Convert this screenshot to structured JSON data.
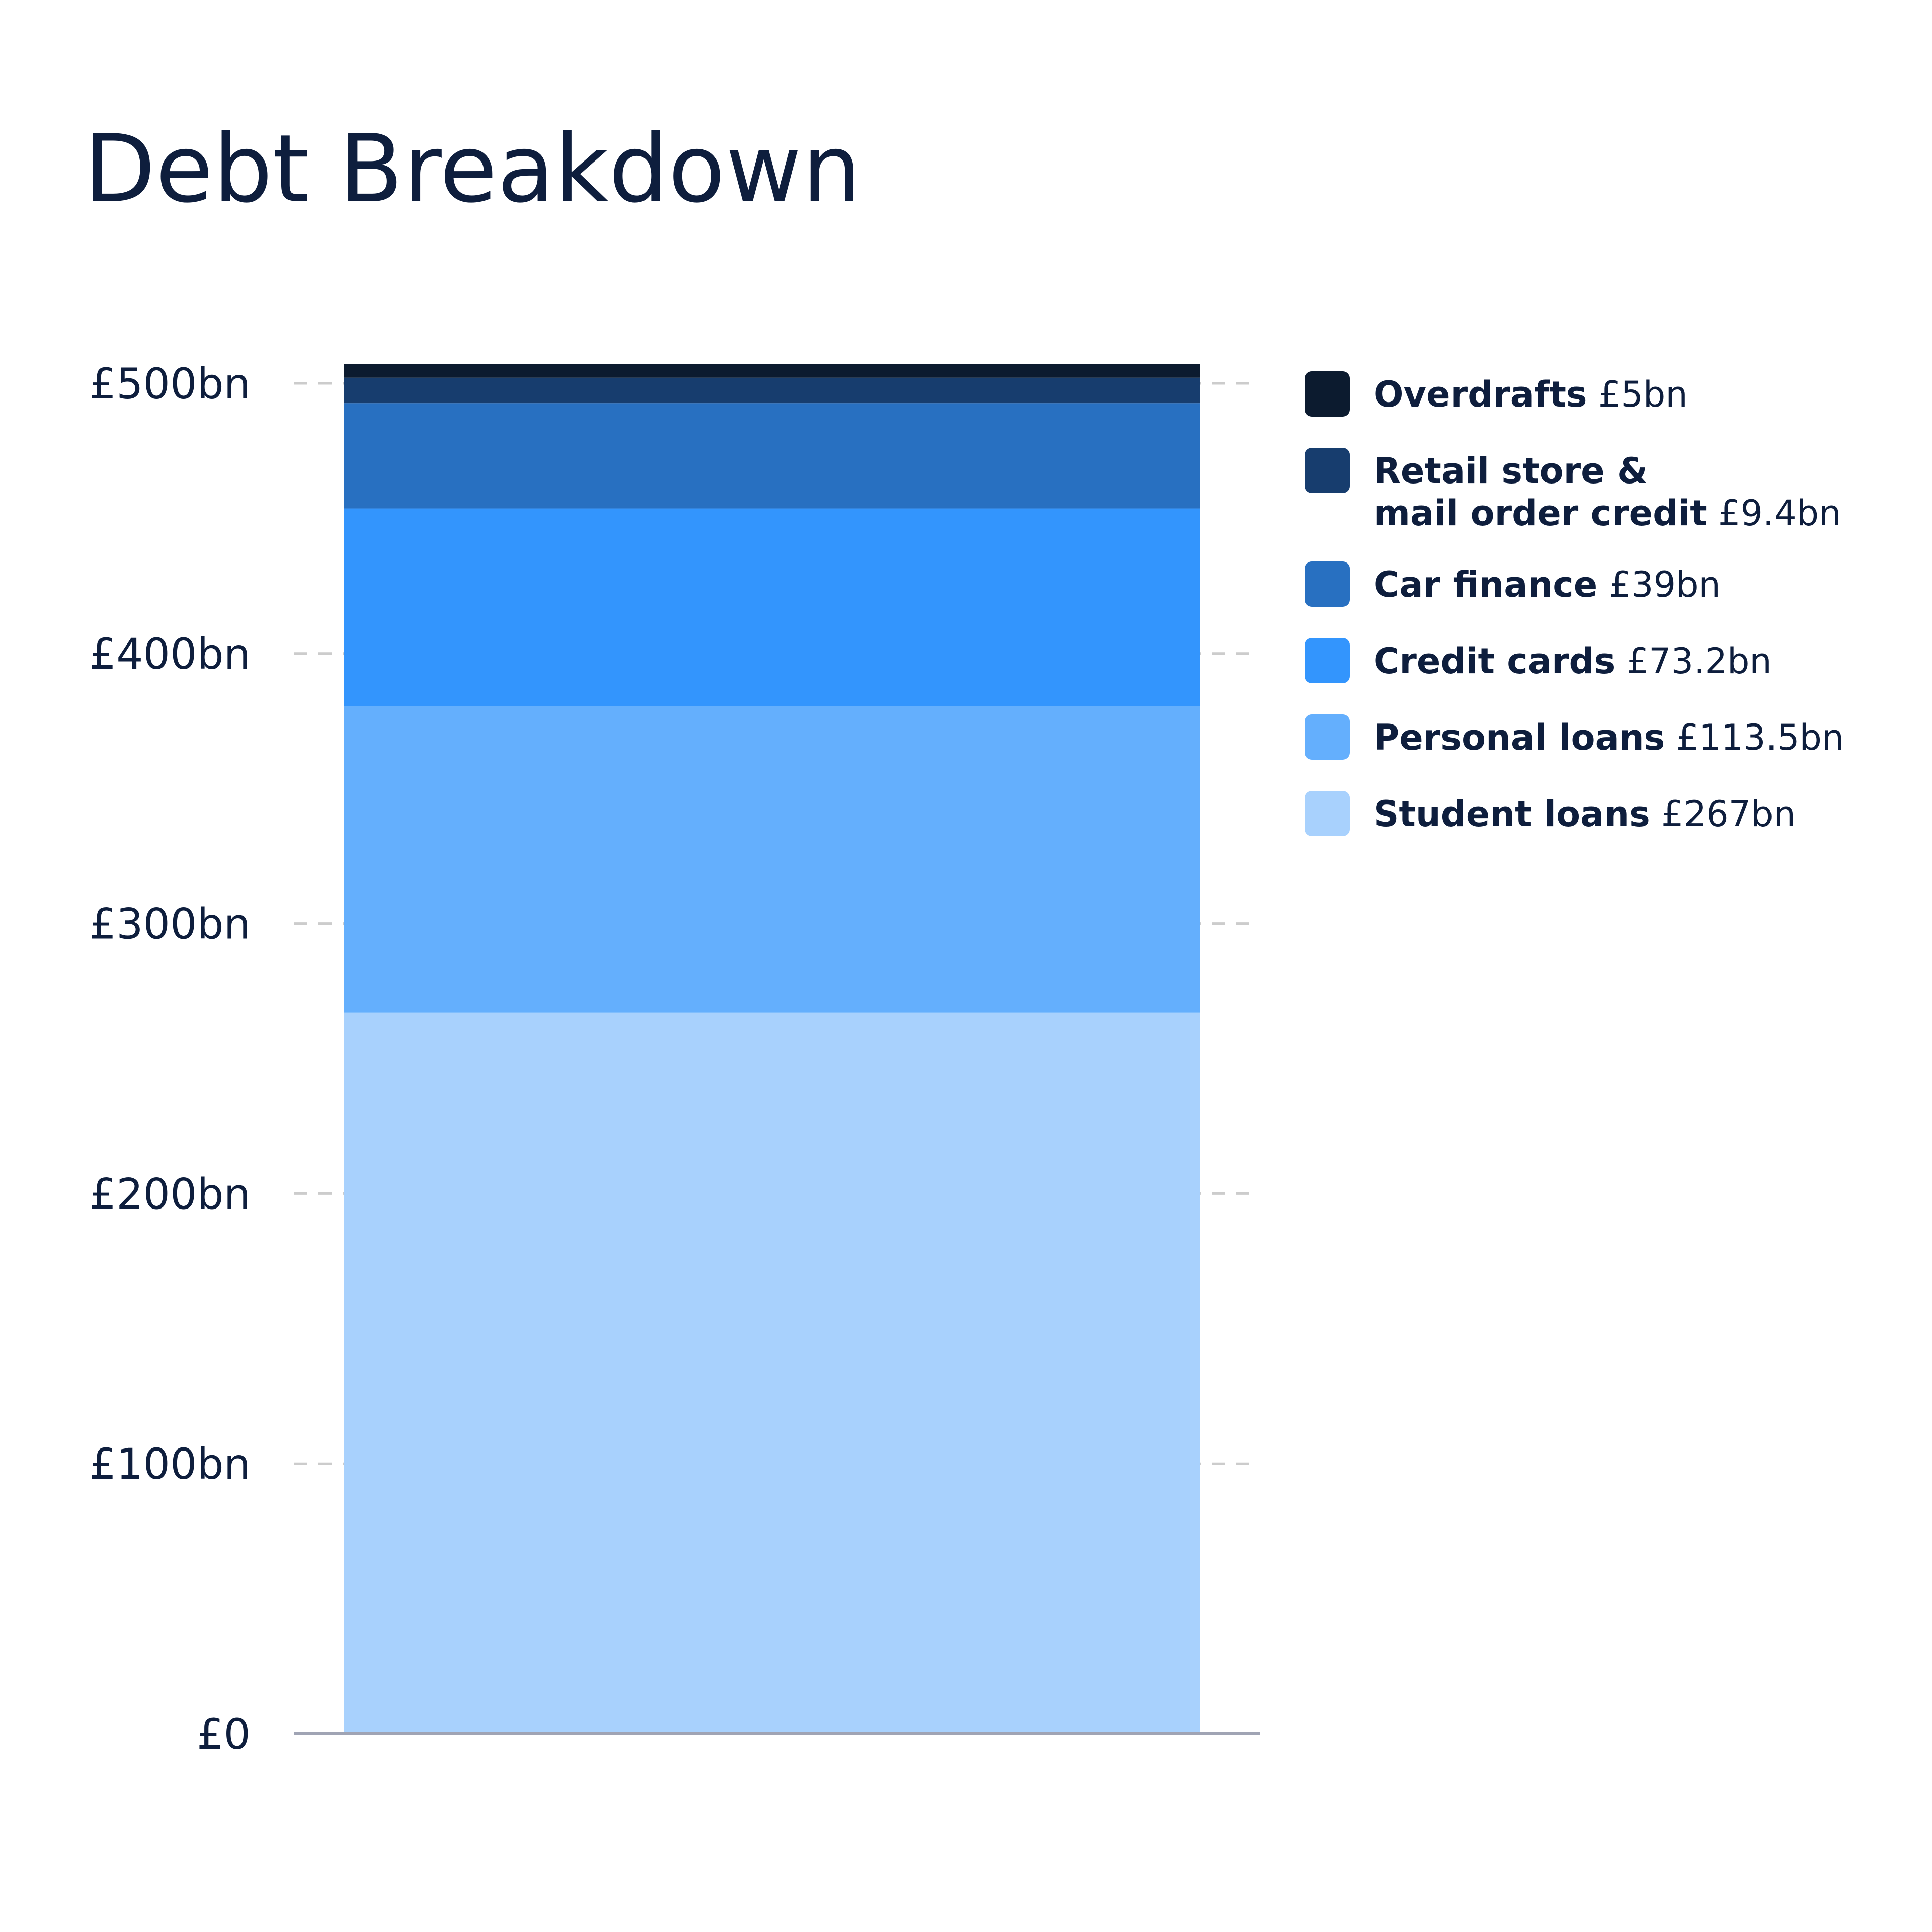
{
  "chart_data": {
    "type": "bar",
    "stacked": true,
    "title": "Debt Breakdown",
    "xlabel": "",
    "ylabel": "",
    "ylim": [
      0,
      500
    ],
    "yticks": [
      0,
      100,
      200,
      300,
      400,
      500
    ],
    "ytick_labels": [
      "£0",
      "£100bn",
      "£200bn",
      "£300bn",
      "£400bn",
      "£500bn"
    ],
    "grid": true,
    "legend_position": "right",
    "series": [
      {
        "name": "Student loans",
        "value": 267,
        "value_label": "£267bn",
        "color": "#a8d1fd"
      },
      {
        "name": "Personal loans",
        "value": 113.5,
        "value_label": "£113.5bn",
        "color": "#64affd"
      },
      {
        "name": "Credit cards",
        "value": 73.2,
        "value_label": "£73.2bn",
        "color": "#3395fd"
      },
      {
        "name": "Car finance",
        "value": 39,
        "value_label": "£39bn",
        "color": "#2870c1"
      },
      {
        "name": "Retail store & mail order credit",
        "name_lines": [
          "Retail store &",
          "mail order credit"
        ],
        "value": 9.4,
        "value_label": "£9.4bn",
        "color": "#173d6e"
      },
      {
        "name": "Overdrafts",
        "value": 5,
        "value_label": "£5bn",
        "color": "#0c1b2f"
      }
    ]
  },
  "colors": {
    "text": "#0e1e3d",
    "grid": "#cccccc",
    "baseline": "#a0a4b4",
    "background": "#ffffff"
  }
}
